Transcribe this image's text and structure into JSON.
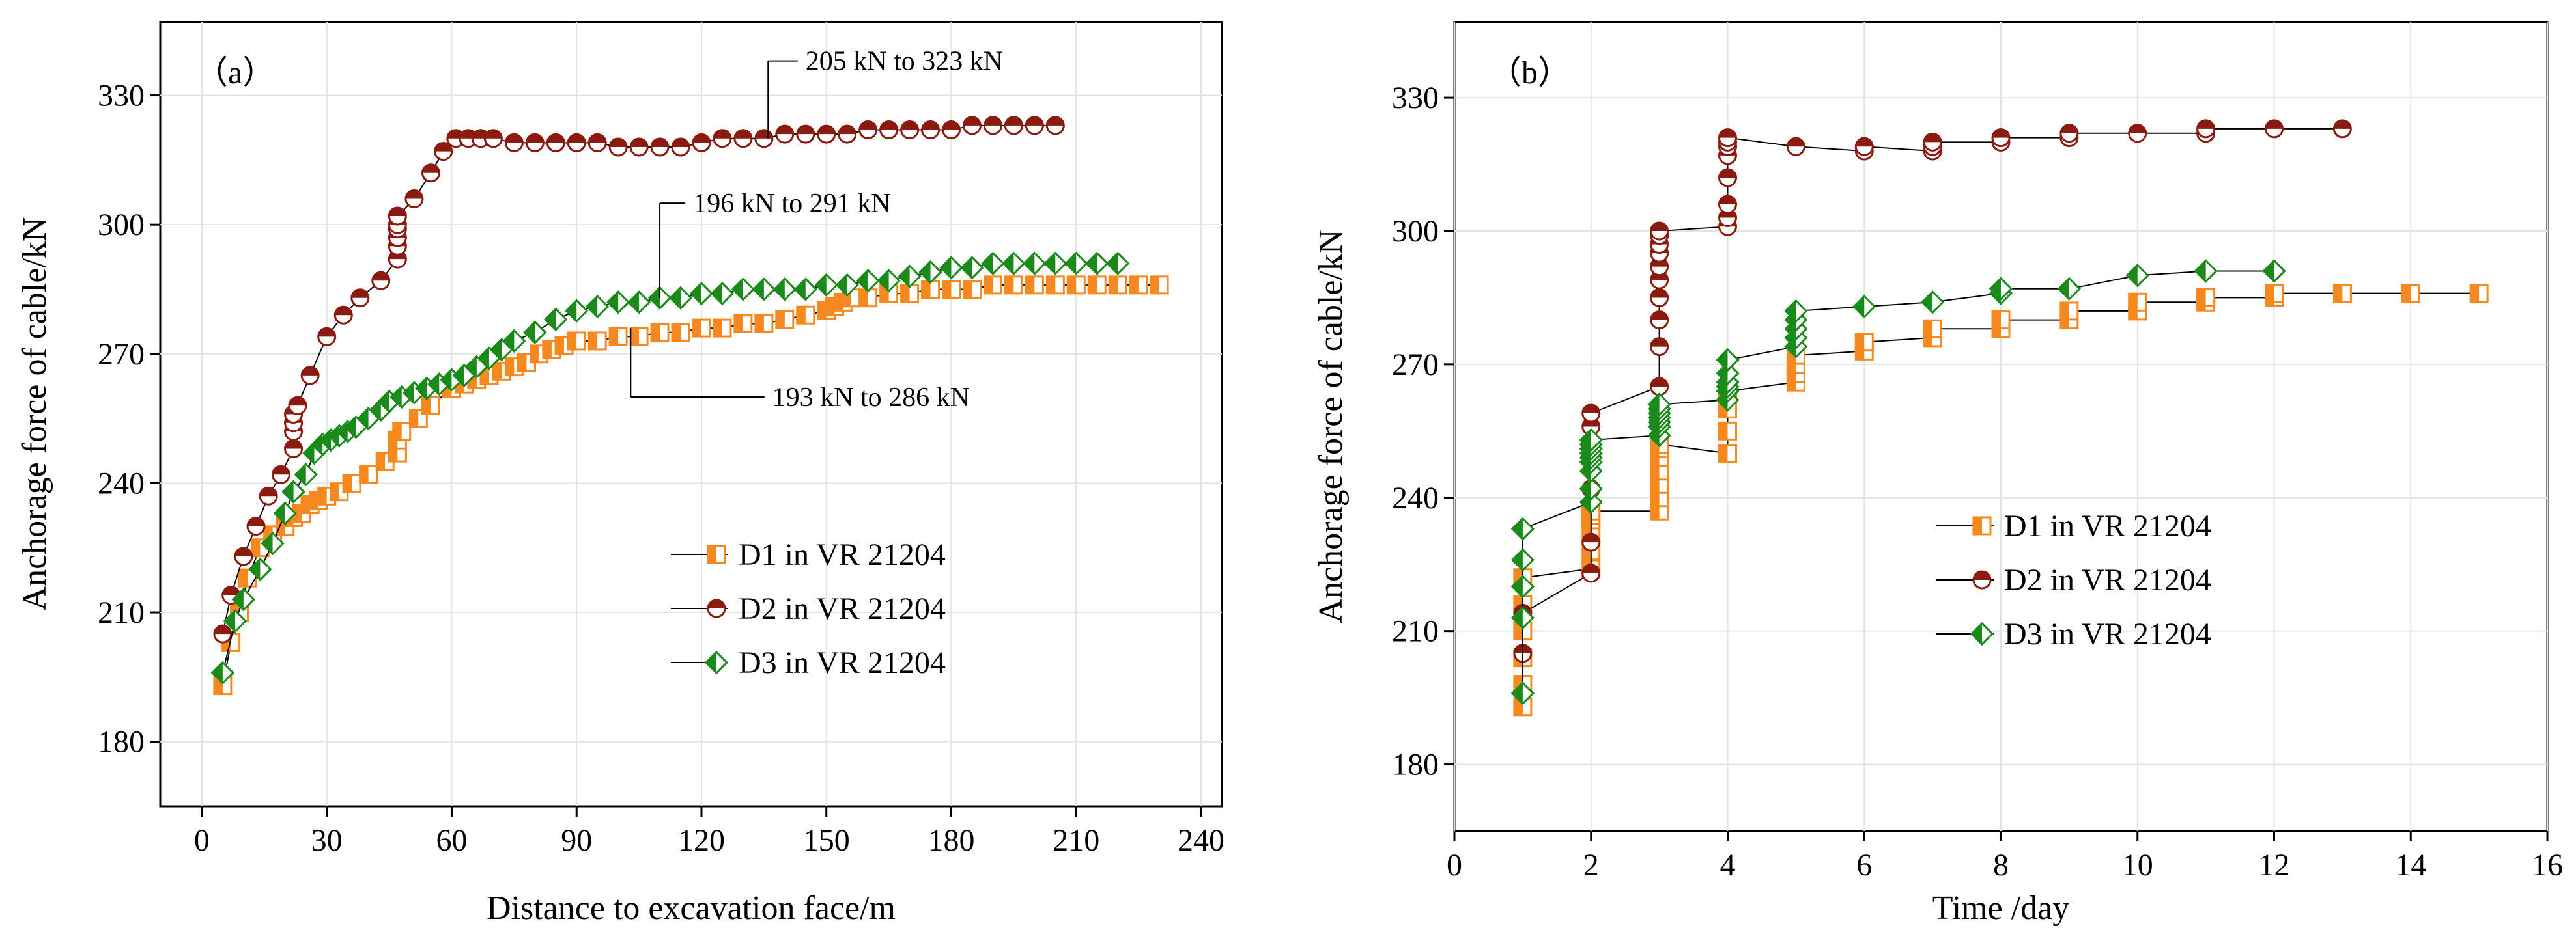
{
  "chart_data": [
    {
      "type": "line",
      "panel_label": "（a）",
      "xlabel": "Distance to excavation face/m",
      "ylabel": "Anchorage force of cable/kN",
      "xlim": [
        -10,
        245
      ],
      "ylim": [
        165,
        347
      ],
      "xticks": [
        0,
        30,
        60,
        90,
        120,
        150,
        180,
        210,
        240
      ],
      "yticks": [
        180,
        210,
        240,
        270,
        300,
        330
      ],
      "grid": true,
      "legend_position": "center-right",
      "annotations": [
        {
          "text": "205 kN to 323 kN",
          "x": 136,
          "y": 320,
          "lx": 145,
          "ly": 338
        },
        {
          "text": "196 kN to 291 kN",
          "x": 110,
          "y": 283,
          "lx": 118,
          "ly": 305
        },
        {
          "text": "193 kN to 286 kN",
          "x": 103,
          "y": 276,
          "lx": 137,
          "ly": 260
        }
      ],
      "series": [
        {
          "name": "D1 in VR 21204",
          "color": "#f5891f",
          "marker": "square",
          "x": [
            5,
            7,
            9,
            11,
            14,
            17,
            20,
            22,
            24,
            26,
            28,
            30,
            33,
            36,
            40,
            44,
            47,
            47,
            48,
            52,
            55,
            60,
            63,
            66,
            69,
            72,
            75,
            78,
            81,
            84,
            87,
            90,
            95,
            100,
            105,
            110,
            115,
            120,
            125,
            130,
            135,
            140,
            145,
            150,
            152,
            154,
            156,
            160,
            165,
            170,
            175,
            180,
            185,
            190,
            195,
            200,
            205,
            210,
            215,
            220,
            225,
            230
          ],
          "values": [
            193,
            203,
            210,
            218,
            225,
            228,
            230,
            232,
            233,
            235,
            236,
            237,
            238,
            240,
            242,
            245,
            247,
            250,
            252,
            255,
            258,
            262,
            263,
            264,
            265,
            266,
            267,
            268,
            270,
            271,
            272,
            273,
            273,
            274,
            274,
            275,
            275,
            276,
            276,
            277,
            277,
            278,
            279,
            280,
            281,
            282,
            283,
            283,
            284,
            284,
            285,
            285,
            285,
            286,
            286,
            286,
            286,
            286,
            286,
            286,
            286,
            286
          ]
        },
        {
          "name": "D2 in VR 21204",
          "color": "#8b1a10",
          "marker": "circle",
          "x": [
            5,
            7,
            10,
            13,
            16,
            19,
            22,
            22,
            22,
            22,
            23,
            26,
            30,
            34,
            38,
            43,
            47,
            47,
            47,
            47,
            47,
            47,
            51,
            55,
            58,
            61,
            64,
            67,
            70,
            75,
            80,
            85,
            90,
            95,
            100,
            105,
            110,
            115,
            120,
            125,
            130,
            135,
            140,
            145,
            150,
            155,
            160,
            165,
            170,
            175,
            180,
            185,
            190,
            195,
            200,
            205
          ],
          "values": [
            205,
            214,
            223,
            230,
            237,
            242,
            248,
            252,
            254,
            256,
            258,
            265,
            274,
            279,
            283,
            287,
            292,
            295,
            297,
            299,
            300,
            302,
            306,
            312,
            317,
            320,
            320,
            320,
            320,
            319,
            319,
            319,
            319,
            319,
            318,
            318,
            318,
            318,
            319,
            320,
            320,
            320,
            321,
            321,
            321,
            321,
            322,
            322,
            322,
            322,
            322,
            323,
            323,
            323,
            323,
            323
          ]
        },
        {
          "name": "D3 in VR 21204",
          "color": "#1a8a1a",
          "marker": "diamond",
          "x": [
            5,
            8,
            10,
            14,
            17,
            20,
            22,
            25,
            27,
            29,
            31,
            33,
            35,
            37,
            40,
            43,
            45,
            48,
            51,
            54,
            57,
            60,
            63,
            66,
            69,
            72,
            75,
            80,
            85,
            90,
            95,
            100,
            105,
            110,
            115,
            120,
            125,
            130,
            135,
            140,
            145,
            150,
            155,
            160,
            165,
            170,
            175,
            180,
            185,
            190,
            195,
            200,
            205,
            210,
            215,
            220
          ],
          "values": [
            196,
            208,
            213,
            220,
            226,
            233,
            238,
            242,
            247,
            249,
            250,
            251,
            252,
            253,
            255,
            257,
            259,
            260,
            261,
            262,
            263,
            264,
            265,
            267,
            269,
            271,
            273,
            275,
            278,
            280,
            281,
            282,
            282,
            283,
            283,
            284,
            284,
            285,
            285,
            285,
            285,
            286,
            286,
            287,
            287,
            288,
            289,
            290,
            290,
            291,
            291,
            291,
            291,
            291,
            291,
            291
          ]
        }
      ]
    },
    {
      "type": "line",
      "panel_label": "（b）",
      "xlabel": "Time /day",
      "ylabel": "Anchorage force of cable/kN",
      "xlim": [
        0,
        16
      ],
      "ylim": [
        165,
        347
      ],
      "xticks": [
        0,
        2,
        4,
        6,
        8,
        10,
        12,
        14,
        16
      ],
      "yticks": [
        180,
        210,
        240,
        270,
        300,
        330
      ],
      "grid": true,
      "legend_position": "center-right",
      "series": [
        {
          "name": "D1 in VR 21204",
          "color": "#f5891f",
          "marker": "square",
          "x": [
            1,
            1,
            1,
            1,
            1,
            1,
            2,
            2,
            2,
            2,
            2,
            2,
            3,
            3,
            3,
            3,
            3,
            3,
            3,
            4,
            4,
            4,
            4,
            5,
            5,
            5,
            5,
            6,
            6,
            7,
            7,
            8,
            8,
            9,
            9,
            10,
            10,
            11,
            11,
            12,
            12,
            13,
            14,
            15
          ],
          "values": [
            193,
            198,
            204,
            210,
            216,
            222,
            224,
            228,
            232,
            235,
            236,
            237,
            237,
            240,
            243,
            246,
            249,
            251,
            252,
            250,
            255,
            260,
            264,
            266,
            268,
            270,
            272,
            273,
            275,
            276,
            278,
            278,
            280,
            280,
            282,
            282,
            284,
            284,
            285,
            285,
            286,
            286,
            286,
            286
          ]
        },
        {
          "name": "D2 in VR 21204",
          "color": "#8b1a10",
          "marker": "circle",
          "x": [
            1,
            1,
            2,
            2,
            2,
            2,
            2,
            2,
            3,
            3,
            3,
            3,
            3,
            3,
            3,
            3,
            3,
            3,
            4,
            4,
            4,
            4,
            4,
            4,
            4,
            4,
            5,
            6,
            6,
            7,
            7,
            7,
            8,
            8,
            9,
            9,
            10,
            11,
            11,
            12,
            13
          ],
          "values": [
            205,
            214,
            223,
            230,
            242,
            250,
            256,
            259,
            265,
            274,
            280,
            285,
            289,
            292,
            295,
            297,
            299,
            300,
            301,
            303,
            306,
            312,
            317,
            319,
            320,
            321,
            319,
            318,
            319,
            318,
            319,
            320,
            320,
            321,
            321,
            322,
            322,
            322,
            323,
            323,
            323
          ]
        },
        {
          "name": "D3 in VR 21204",
          "color": "#1a8a1a",
          "marker": "diamond",
          "x": [
            1,
            1,
            1,
            1,
            1,
            2,
            2,
            2,
            2,
            2,
            2,
            2,
            2,
            2,
            3,
            3,
            3,
            3,
            3,
            3,
            3,
            4,
            4,
            4,
            4,
            4,
            4,
            5,
            5,
            5,
            5,
            5,
            6,
            7,
            8,
            8,
            9,
            10,
            11,
            12
          ],
          "values": [
            196,
            213,
            220,
            226,
            233,
            239,
            242,
            246,
            248,
            249,
            250,
            251,
            252,
            253,
            254,
            256,
            257,
            258,
            259,
            260,
            261,
            262,
            264,
            265,
            266,
            268,
            271,
            274,
            276,
            278,
            280,
            282,
            283,
            284,
            286,
            287,
            287,
            290,
            291,
            291
          ]
        }
      ]
    }
  ]
}
